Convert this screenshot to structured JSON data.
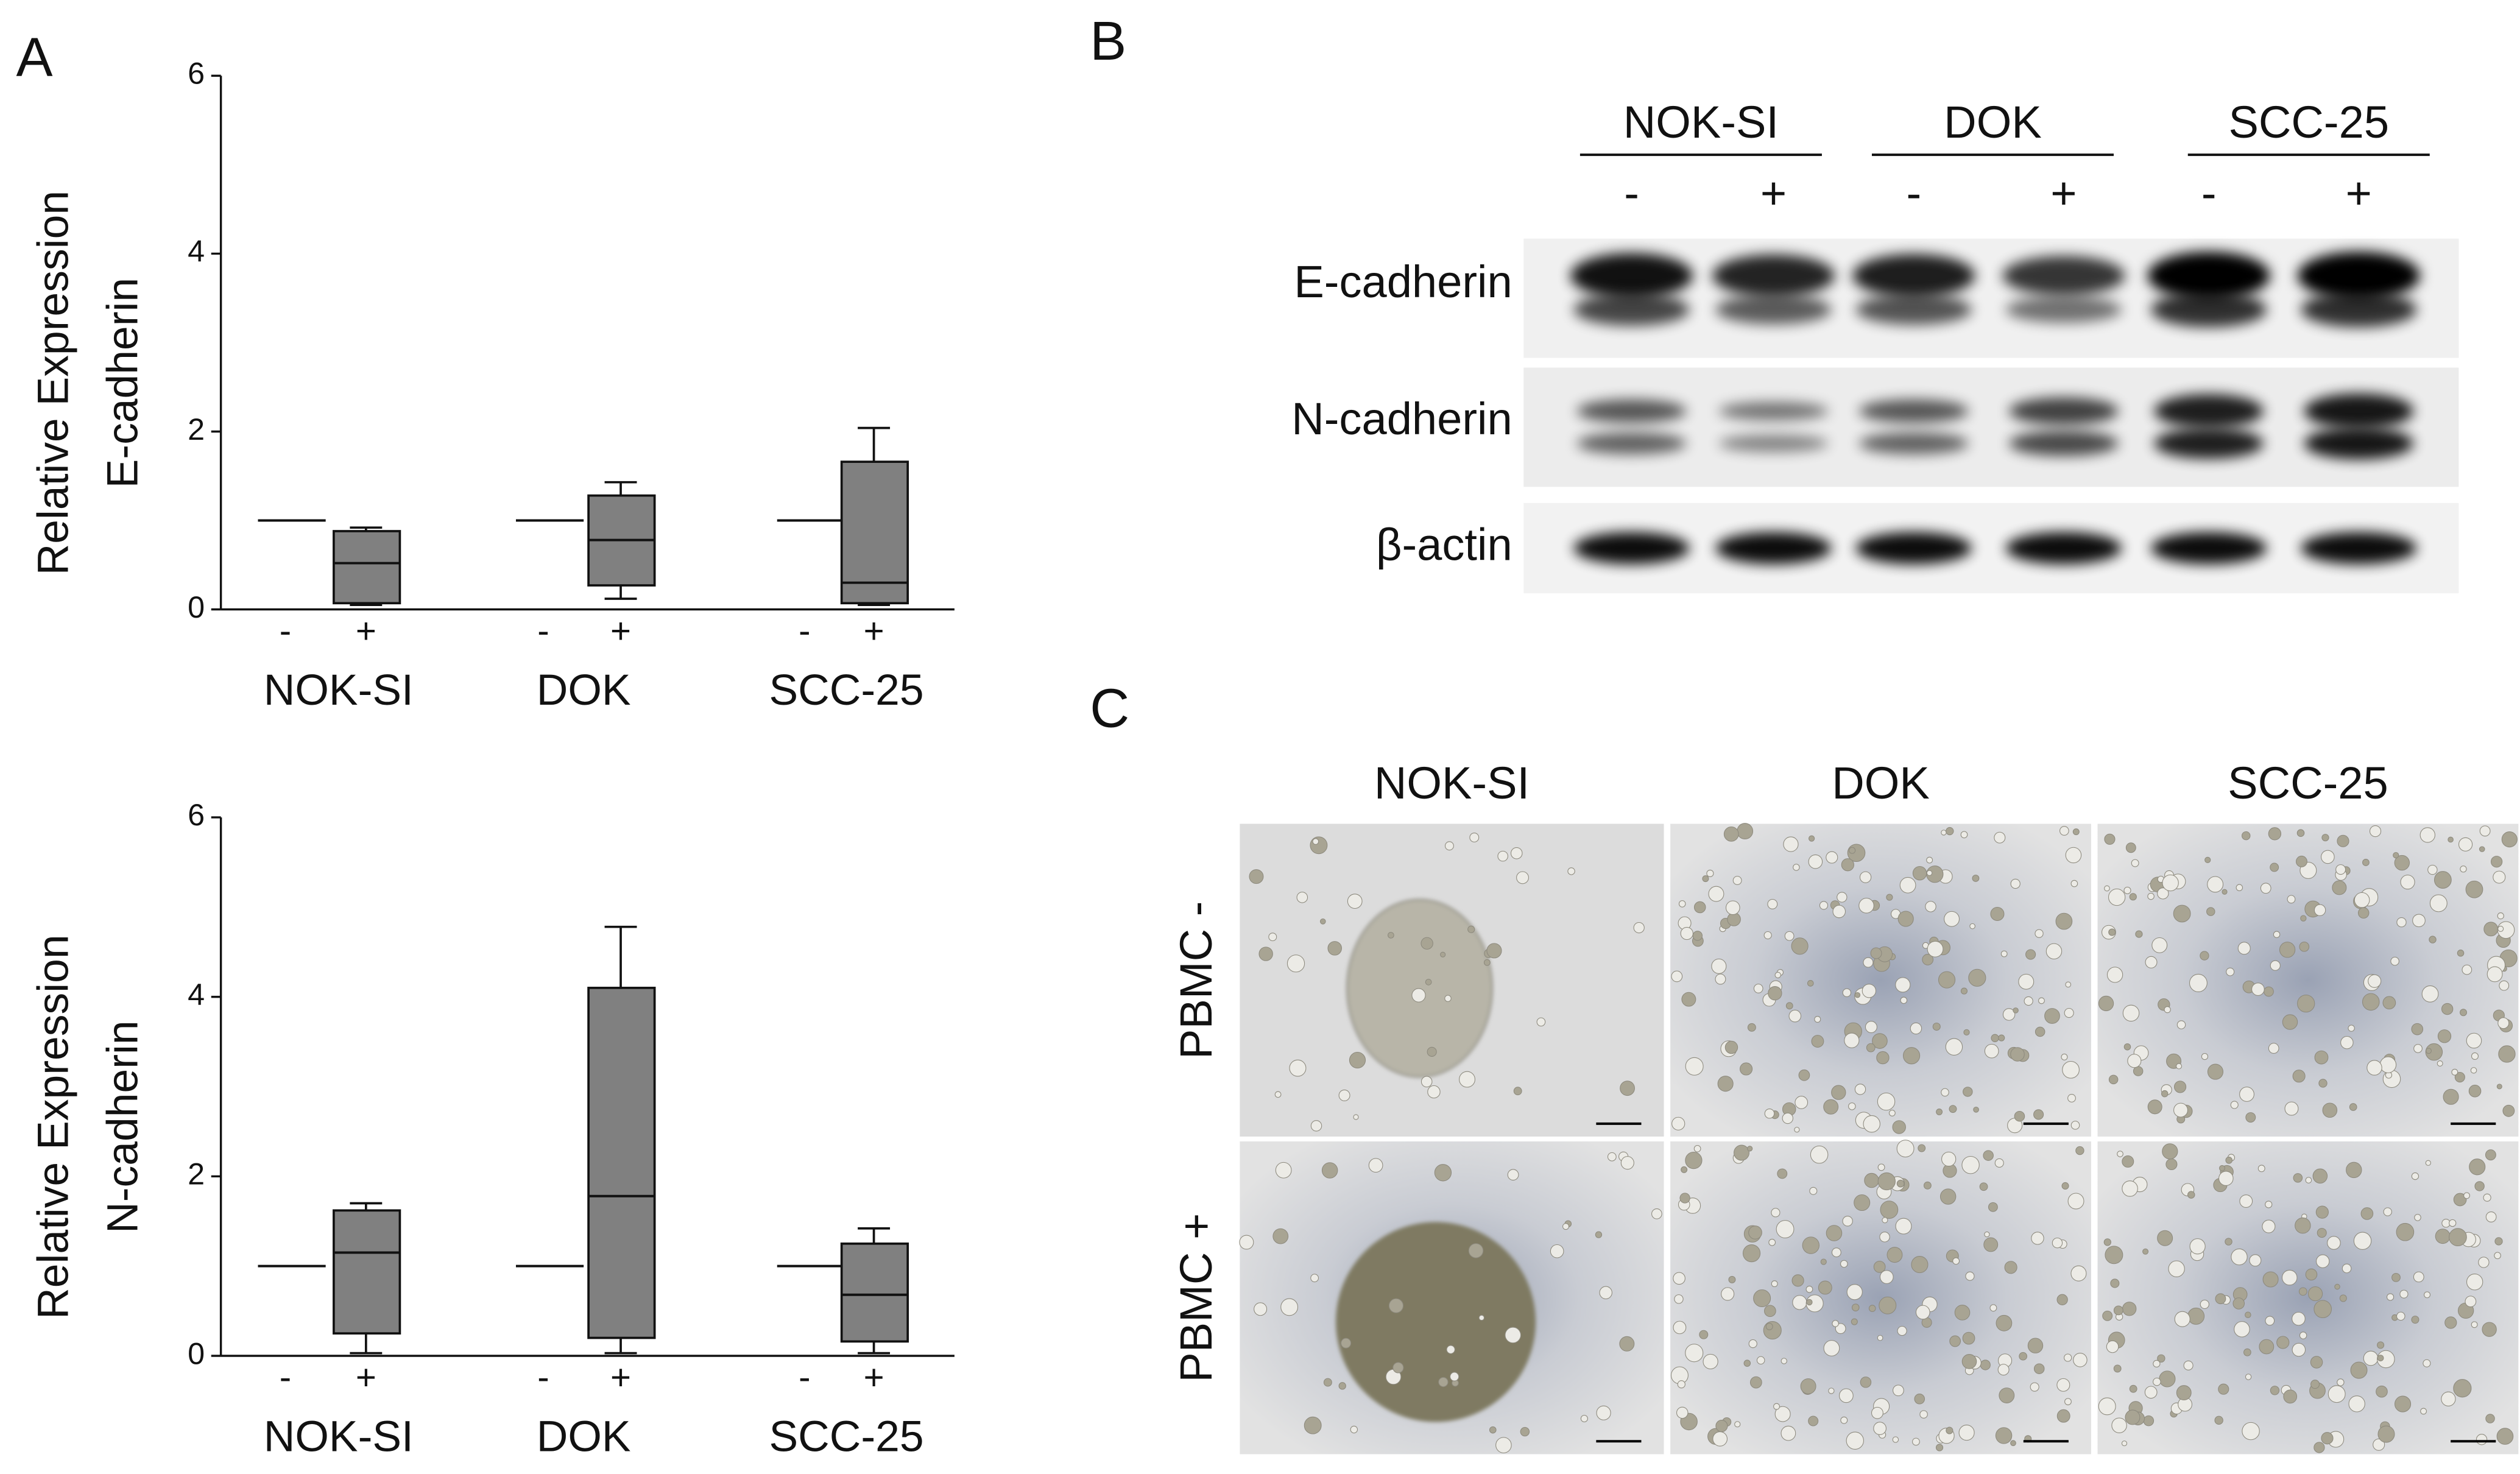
{
  "panel_labels": [
    "A",
    "B",
    "C"
  ],
  "chart_data": [
    {
      "type": "box",
      "ylabel": [
        "Relative Expression",
        "E-cadherin"
      ],
      "categories": [
        "NOK-SI",
        "DOK",
        "SCC-25"
      ],
      "groups": [
        "-",
        "+"
      ],
      "control": [
        1,
        1,
        1
      ],
      "boxes": [
        {
          "min": 0.05,
          "q1": 0.07,
          "median": 0.52,
          "q3": 0.88,
          "max": 0.92
        },
        {
          "min": 0.12,
          "q1": 0.27,
          "median": 0.78,
          "q3": 1.28,
          "max": 1.43
        },
        {
          "min": 0.05,
          "q1": 0.07,
          "median": 0.3,
          "q3": 1.66,
          "max": 2.04
        }
      ],
      "color": "#808080",
      "ylim": [
        0,
        6
      ],
      "yticks": [
        0,
        2,
        4,
        6
      ]
    },
    {
      "type": "box",
      "ylabel": [
        "Relative Expression",
        "N-cadherin"
      ],
      "categories": [
        "NOK-SI",
        "DOK",
        "SCC-25"
      ],
      "groups": [
        "-",
        "+"
      ],
      "control": [
        1,
        1,
        1
      ],
      "boxes": [
        {
          "min": 0.03,
          "q1": 0.25,
          "median": 1.15,
          "q3": 1.62,
          "max": 1.7
        },
        {
          "min": 0.03,
          "q1": 0.2,
          "median": 1.78,
          "q3": 4.1,
          "max": 4.78
        },
        {
          "min": 0.03,
          "q1": 0.16,
          "median": 0.68,
          "q3": 1.25,
          "max": 1.42
        }
      ],
      "color": "#808080",
      "ylim": [
        0,
        6
      ],
      "yticks": [
        0,
        2,
        4,
        6
      ]
    }
  ],
  "blot": {
    "cell_lines": [
      "NOK-SI",
      "DOK",
      "SCC-25"
    ],
    "treatments": [
      "-",
      "+"
    ],
    "proteins": [
      "E-cadherin",
      "N-cadherin",
      "β-actin"
    ]
  },
  "micrographs": {
    "columns": [
      "NOK-SI",
      "DOK",
      "SCC-25"
    ],
    "rows": [
      "PBMC -",
      "PBMC +"
    ]
  }
}
